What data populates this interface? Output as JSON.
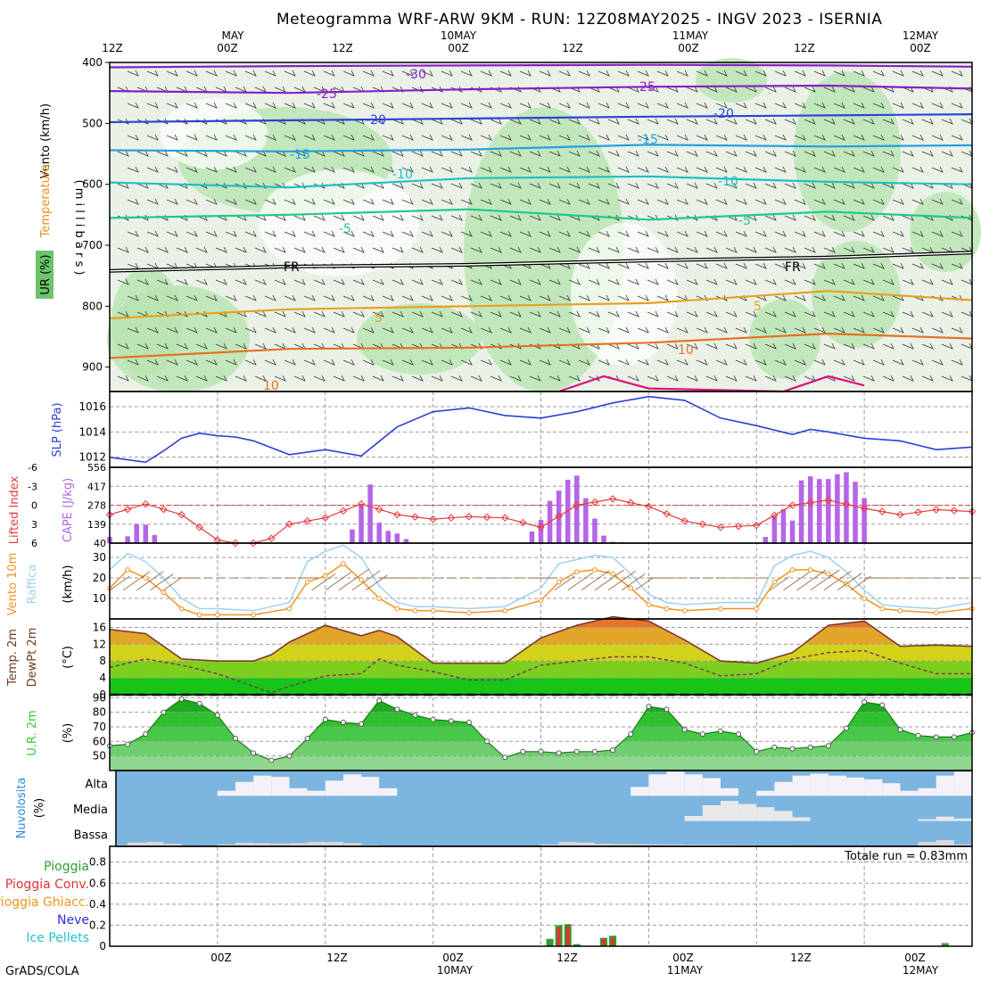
{
  "title": "Meteogramma WRF-ARW 9KM - RUN: 12Z08MAY2025 - INGV 2023 - ISERNIA",
  "footer": "GrADS/COLA",
  "top_time_axis": [
    "12Z",
    "MAY",
    "00Z",
    "12Z",
    "10MAY",
    "00Z",
    "12Z",
    "11MAY",
    "00Z",
    "12Z",
    "12MAY",
    "00Z"
  ],
  "bottom_time_axis": [
    "00Z",
    "12Z",
    "00Z",
    "10MAY",
    "12Z",
    "00Z",
    "11MAY",
    "12Z",
    "00Z",
    "12MAY"
  ],
  "colors": {
    "frame": "#000000",
    "grid": "#9a9a9a",
    "slp": "#2b3fd6",
    "lifted": "#e83a3a",
    "cape": "#b565e8",
    "wind": "#f39220",
    "gust": "#9fd1f0",
    "arrow": "#8b5a2b",
    "rh_green": "#3cc43c",
    "sky": "#7cb5e0",
    "cloud": "#f4f2f8",
    "rain": "#2ca02c",
    "conv": "#e63030",
    "t_m30": "#8a1fc4",
    "t_m25": "#8a1fc4",
    "t_m20": "#2c44d8",
    "t_m15": "#1fa0e0",
    "t_m10": "#1fc0c4",
    "t_m5": "#1fc890",
    "t_5": "#e8a020",
    "t_10": "#e87020",
    "t_15": "#e0107a"
  },
  "chart_data": [
    {
      "type": "area",
      "panel": "upper-air",
      "ylabel_vento": "Vento (km/h)",
      "ylabel_temperatura": "Temperatura",
      "ylabel_ur": "UR (%)",
      "ylabel_millibars": "( m i l l i b a r s )",
      "y_ticks": [
        400,
        500,
        600,
        700,
        800,
        900
      ],
      "ylim": [
        940,
        400
      ],
      "isotherm_labels": [
        "-30",
        "-25",
        "-20",
        "-15",
        "-10",
        "-5",
        "FR",
        "5",
        "10",
        "10",
        "-20",
        "-25",
        "-15",
        "-10",
        "-5",
        "5",
        "FR",
        "10"
      ],
      "isotherms": [
        {
          "label": "-30",
          "p": [
            [
              0,
              408
            ],
            [
              20,
              406
            ],
            [
              40,
              405
            ],
            [
              60,
              404
            ],
            [
              80,
              405
            ],
            [
              96,
              407
            ]
          ]
        },
        {
          "label": "-25",
          "p": [
            [
              0,
              447
            ],
            [
              20,
              450
            ],
            [
              40,
              444
            ],
            [
              60,
              440
            ],
            [
              80,
              438
            ],
            [
              96,
              443
            ]
          ]
        },
        {
          "label": "-20",
          "p": [
            [
              0,
              498
            ],
            [
              20,
              495
            ],
            [
              40,
              492
            ],
            [
              60,
              489
            ],
            [
              80,
              487
            ],
            [
              96,
              485
            ]
          ]
        },
        {
          "label": "-15",
          "p": [
            [
              0,
              544
            ],
            [
              20,
              546
            ],
            [
              40,
              543
            ],
            [
              60,
              535
            ],
            [
              80,
              538
            ],
            [
              96,
              536
            ]
          ]
        },
        {
          "label": "-10",
          "p": [
            [
              0,
              597
            ],
            [
              20,
              605
            ],
            [
              40,
              590
            ],
            [
              60,
              587
            ],
            [
              80,
              596
            ],
            [
              96,
              600
            ]
          ]
        },
        {
          "label": "-5",
          "p": [
            [
              0,
              655
            ],
            [
              20,
              650
            ],
            [
              40,
              641
            ],
            [
              60,
              658
            ],
            [
              80,
              645
            ],
            [
              96,
              655
            ]
          ]
        },
        {
          "label": "FR",
          "p": [
            [
              0,
              742
            ],
            [
              20,
              735
            ],
            [
              40,
              732
            ],
            [
              60,
              725
            ],
            [
              80,
              720
            ],
            [
              96,
              712
            ]
          ]
        },
        {
          "label": "5",
          "p": [
            [
              0,
              820
            ],
            [
              20,
              805
            ],
            [
              40,
              800
            ],
            [
              60,
              795
            ],
            [
              80,
              775
            ],
            [
              96,
              790
            ]
          ]
        },
        {
          "label": "10",
          "p": [
            [
              0,
              885
            ],
            [
              20,
              870
            ],
            [
              40,
              868
            ],
            [
              60,
              860
            ],
            [
              80,
              845
            ],
            [
              96,
              853
            ]
          ]
        },
        {
          "label": "15",
          "p": [
            [
              50,
              940
            ],
            [
              55,
              915
            ],
            [
              60,
              935
            ],
            [
              75,
              940
            ],
            [
              80,
              915
            ],
            [
              84,
              930
            ]
          ]
        }
      ]
    },
    {
      "type": "line",
      "panel": "slp",
      "ylabel": "SLP (hPa)",
      "y_ticks": [
        1012,
        1014,
        1016
      ],
      "ylim": [
        1011.2,
        1017.2
      ],
      "x": [
        0,
        4,
        6,
        8,
        10,
        12,
        14,
        16,
        20,
        24,
        28,
        32,
        36,
        40,
        44,
        48,
        52,
        56,
        60,
        64,
        68,
        72,
        76,
        78,
        80,
        84,
        88,
        92,
        96
      ],
      "values": [
        1012.0,
        1011.6,
        1012.5,
        1013.5,
        1013.9,
        1013.7,
        1013.6,
        1013.3,
        1012.2,
        1012.6,
        1012.1,
        1014.4,
        1015.6,
        1015.9,
        1015.3,
        1015.1,
        1015.6,
        1016.3,
        1016.8,
        1016.5,
        1015.1,
        1014.5,
        1013.8,
        1014.2,
        1014.0,
        1013.5,
        1013.3,
        1012.6,
        1012.8
      ]
    },
    {
      "type": "bar",
      "panel": "cape-lifted",
      "ylabel_lifted": "Lifted Index",
      "ylabel_cape": "CAPE (J/kg)",
      "li_ticks": [
        "-6",
        "-3",
        "0",
        "3",
        "6"
      ],
      "cape_ticks": [
        "556",
        "417",
        "278",
        "139",
        "40"
      ],
      "cape_hours": [
        0,
        2,
        3,
        4,
        5,
        27,
        28,
        29,
        30,
        31,
        32,
        33,
        47,
        48,
        49,
        50,
        51,
        52,
        53,
        54,
        55,
        56,
        57,
        73,
        74,
        75,
        76,
        77,
        78,
        79,
        80,
        81,
        82,
        83,
        84
      ],
      "cape_values": [
        45,
        50,
        140,
        135,
        60,
        100,
        285,
        430,
        150,
        90,
        70,
        30,
        85,
        170,
        310,
        385,
        465,
        495,
        330,
        180,
        55,
        10,
        8,
        45,
        200,
        250,
        165,
        460,
        490,
        470,
        470,
        505,
        520,
        450,
        330
      ],
      "lifted_x": [
        0,
        4,
        8,
        12,
        16,
        20,
        24,
        28,
        32,
        36,
        40,
        44,
        48,
        52,
        56,
        60,
        64,
        68,
        72,
        76,
        80,
        84,
        88,
        92,
        96
      ],
      "lifted_values": [
        1.5,
        -0.2,
        1.5,
        5.5,
        7.5,
        3,
        2,
        -0.2,
        1.5,
        2.2,
        1.8,
        2,
        3.5,
        0,
        -1,
        0.2,
        2.5,
        3.5,
        3.2,
        0,
        -0.8,
        0.5,
        1.5,
        0.7,
        1.0
      ]
    },
    {
      "type": "line",
      "panel": "wind-10m",
      "ylabel_vento": "Vento 10m",
      "ylabel_raffica": "Raffica",
      "ylabel_unit": "(km/h)",
      "y_ticks": [
        10,
        20,
        30
      ],
      "ylim": [
        0,
        37
      ],
      "x": [
        0,
        2,
        4,
        6,
        8,
        10,
        12,
        16,
        20,
        22,
        24,
        26,
        28,
        30,
        32,
        34,
        36,
        40,
        44,
        48,
        50,
        52,
        54,
        56,
        58,
        60,
        62,
        64,
        68,
        72,
        74,
        76,
        78,
        80,
        82,
        84,
        86,
        88,
        92,
        96
      ],
      "wind_values": [
        15,
        24,
        20,
        13,
        5,
        2,
        2,
        2,
        5,
        18,
        21,
        27,
        19,
        10,
        5,
        4,
        4,
        3,
        4,
        9,
        18,
        23,
        24,
        22,
        15,
        7,
        5,
        4,
        5,
        5,
        18,
        24,
        24,
        22,
        17,
        10,
        5,
        4,
        3,
        5
      ],
      "gust_values": [
        24,
        32,
        28,
        20,
        10,
        5,
        5,
        4,
        8,
        28,
        33,
        36,
        30,
        16,
        8,
        6,
        6,
        5,
        6,
        15,
        27,
        29,
        31,
        30,
        22,
        12,
        8,
        7,
        8,
        8,
        26,
        31,
        33,
        30,
        23,
        14,
        7,
        6,
        5,
        8
      ]
    },
    {
      "type": "area",
      "panel": "temp-2m",
      "ylabel_temp": "Temp. 2m",
      "ylabel_dewpt": "DewPt 2m",
      "ylabel_unit": "(°C)",
      "y_ticks": [
        0,
        4,
        8,
        12,
        16
      ],
      "ylim": [
        0,
        18
      ],
      "x": [
        0,
        4,
        8,
        12,
        16,
        18,
        20,
        24,
        28,
        30,
        32,
        36,
        40,
        44,
        48,
        52,
        56,
        60,
        64,
        68,
        72,
        76,
        80,
        84,
        88,
        92,
        96
      ],
      "temp_values": [
        15.5,
        14.5,
        8.5,
        8,
        8,
        9.5,
        12.5,
        16.5,
        14,
        15.3,
        13.8,
        7.5,
        7.5,
        7.5,
        13.5,
        16.5,
        18.5,
        17.5,
        13,
        8,
        7.5,
        10,
        16.5,
        17.5,
        11.5,
        11.8,
        11.5
      ],
      "dewpt_values": [
        6.5,
        8.5,
        7,
        5,
        2,
        0.5,
        2,
        4.5,
        5,
        8.5,
        7,
        5.5,
        3.5,
        3.5,
        7,
        8,
        9,
        9,
        7.5,
        4.5,
        5,
        8.5,
        10,
        10.5,
        7.5,
        5,
        5
      ]
    },
    {
      "type": "area",
      "panel": "rh-2m",
      "ylabel": "U.R. 2m",
      "ylabel_unit": "(%)",
      "y_ticks": [
        50,
        60,
        70,
        80,
        90
      ],
      "ylim": [
        40,
        92
      ],
      "x": [
        0,
        2,
        4,
        6,
        8,
        10,
        12,
        14,
        16,
        18,
        20,
        22,
        24,
        26,
        28,
        30,
        32,
        34,
        36,
        38,
        40,
        42,
        44,
        46,
        48,
        50,
        52,
        54,
        56,
        58,
        60,
        62,
        64,
        66,
        68,
        70,
        72,
        74,
        76,
        78,
        80,
        82,
        84,
        86,
        88,
        90,
        92,
        94,
        96
      ],
      "values": [
        57,
        58,
        65,
        80,
        89,
        86,
        78,
        62,
        52,
        47,
        50,
        62,
        75,
        73,
        72,
        88,
        82,
        78,
        75,
        74,
        73,
        60,
        49,
        53,
        53,
        52,
        53,
        53,
        54,
        65,
        84,
        82,
        68,
        65,
        67,
        65,
        53,
        56,
        55,
        56,
        57,
        69,
        87,
        85,
        68,
        64,
        63,
        63,
        66
      ]
    },
    {
      "type": "area",
      "panel": "clouds",
      "ylabel": "Nuvolosita",
      "ylabel_unit": "(%)",
      "levels": [
        "Alta",
        "Media",
        "Bassa"
      ],
      "alta_x": [
        0,
        12,
        14,
        16,
        18,
        20,
        22,
        24,
        26,
        28,
        30,
        32,
        58,
        60,
        62,
        64,
        66,
        68,
        70,
        72,
        74,
        76,
        78,
        80,
        82,
        84,
        86,
        88,
        90,
        92,
        94,
        96
      ],
      "alta_values": [
        0,
        0,
        40,
        70,
        90,
        60,
        0,
        40,
        80,
        90,
        60,
        0,
        0,
        70,
        100,
        90,
        80,
        60,
        0,
        0,
        40,
        70,
        90,
        85,
        75,
        70,
        60,
        40,
        0,
        60,
        100,
        90
      ],
      "media_x": [
        0,
        64,
        66,
        68,
        70,
        72,
        74,
        76,
        78,
        80,
        82,
        84,
        86,
        88,
        90,
        92,
        94,
        96
      ],
      "media_values": [
        0,
        0,
        40,
        85,
        75,
        60,
        50,
        30,
        0,
        0,
        0,
        0,
        0,
        0,
        0,
        15,
        20,
        0
      ],
      "bassa_x": [
        0,
        2,
        4,
        6,
        8,
        10,
        12,
        14,
        20,
        24,
        26,
        28,
        30,
        48,
        50,
        52,
        54,
        90,
        92,
        94,
        96
      ],
      "bassa_values": [
        0,
        10,
        20,
        15,
        5,
        0,
        0,
        15,
        10,
        20,
        15,
        10,
        0,
        0,
        15,
        20,
        10,
        0,
        35,
        15,
        0
      ]
    },
    {
      "type": "bar",
      "panel": "precipitation",
      "legend": [
        "Pioggia",
        "Pioggia Conv.",
        "Pioggia Ghiacc.",
        "Neve",
        "Ice Pellets"
      ],
      "annotation": "Totale run = 0.83mm",
      "y_ticks": [
        "0",
        "0.2",
        "0.4",
        "0.6",
        "0.8"
      ],
      "ylim": [
        0,
        0.95
      ],
      "hours": [
        49,
        50,
        51,
        52,
        55,
        56,
        93
      ],
      "rain": [
        0.07,
        0.2,
        0.21,
        0.02,
        0.08,
        0.1,
        0.03
      ],
      "conv": [
        0.0,
        0.18,
        0.19,
        0.0,
        0.07,
        0.08,
        0.0
      ]
    }
  ]
}
